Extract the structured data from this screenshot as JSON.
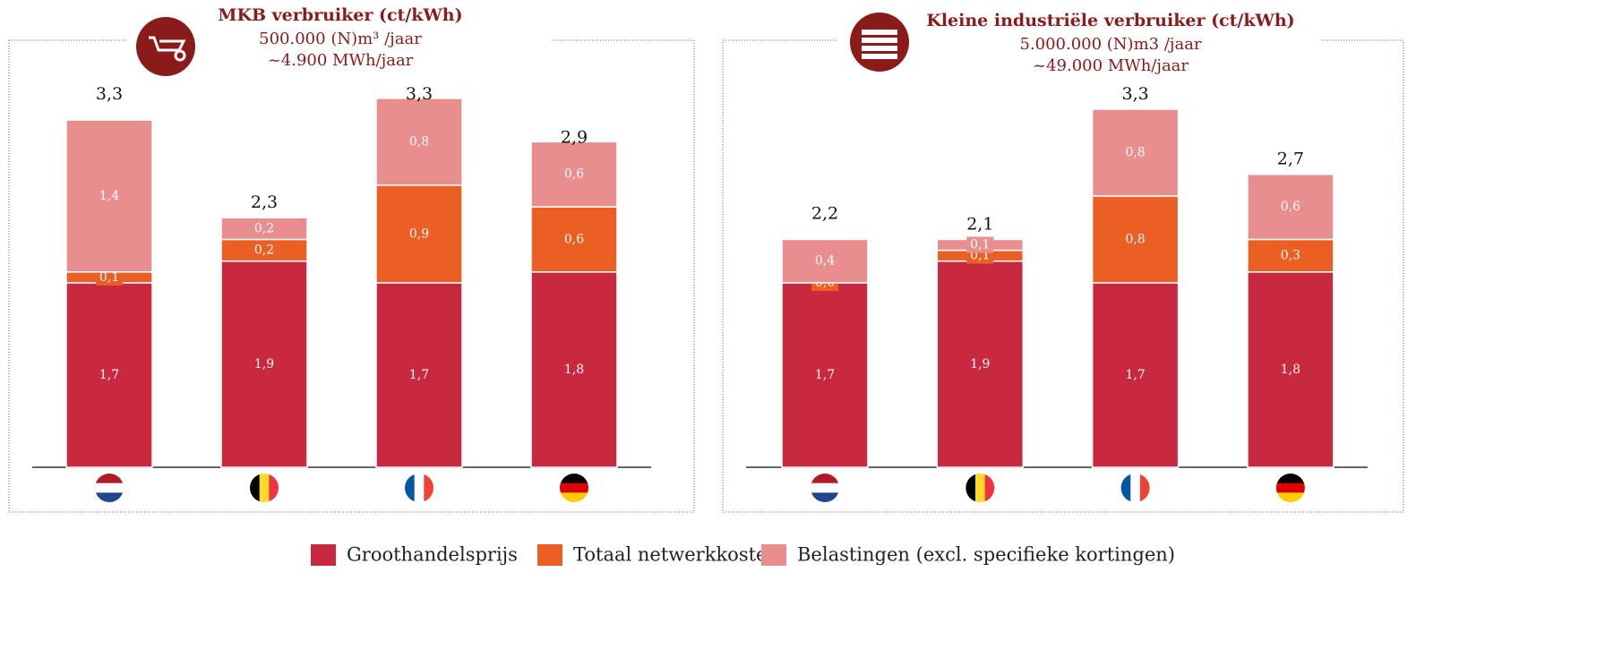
{
  "chart_data": [
    {
      "type": "stacked_bar",
      "title": "MKB verbruiker (ct/kWh)",
      "subtitle": [
        "500.000 (N)m³ /jaar",
        "~4.900 MWh/jaar"
      ],
      "categories": [
        null,
        null,
        null,
        null
      ],
      "series": [
        {
          "name": "Groothandelsprijs",
          "color": "#c8293f",
          "values": [
            1.7,
            1.9,
            1.7,
            1.8
          ],
          "value_labels": [
            "1,7",
            "1,9",
            "1,7",
            "1,8"
          ]
        },
        {
          "name": "Totaal netwerkkosten",
          "color": "#ec5f24",
          "values": [
            0.1,
            0.2,
            0.9,
            0.6
          ],
          "value_labels": [
            "0,1",
            "0,2",
            "0,9",
            "0,6"
          ]
        },
        {
          "name": "Belastingen (excl. specifieke kortingen)",
          "color": "#e88e8e",
          "values": [
            1.4,
            0.2,
            0.8,
            0.6
          ],
          "value_labels": [
            "1,4",
            "0,2",
            "0,8",
            "0,6"
          ]
        }
      ],
      "totals": [
        3.3,
        2.3,
        3.3,
        2.9
      ],
      "total_labels": [
        "3,3",
        "2,3",
        "3,3",
        "2,9"
      ]
    },
    {
      "type": "stacked_bar",
      "title": "Kleine industriële verbruiker (ct/kWh)",
      "subtitle": [
        "5.000.000 (N)m3 /jaar",
        "~49.000 MWh/jaar"
      ],
      "categories": [
        null,
        null,
        null,
        null
      ],
      "series": [
        {
          "name": "Groothandelsprijs",
          "color": "#c8293f",
          "values": [
            1.7,
            1.9,
            1.7,
            1.8
          ],
          "value_labels": [
            "1,7",
            "1,9",
            "1,7",
            "1,8"
          ]
        },
        {
          "name": "Totaal netwerkkosten",
          "color": "#ec5f24",
          "values": [
            0.0,
            0.1,
            0.8,
            0.3
          ],
          "value_labels": [
            "0,0",
            "0,1",
            "0,8",
            "0,3"
          ]
        },
        {
          "name": "Belastingen (excl. specifieke kortingen)",
          "color": "#e88e8e",
          "values": [
            0.4,
            0.1,
            0.8,
            0.6
          ],
          "value_labels": [
            "0,4",
            "0,1",
            "0,8",
            "0,6"
          ]
        }
      ],
      "totals": [
        2.2,
        2.1,
        3.3,
        2.7
      ],
      "total_labels": [
        "2,2",
        "2,1",
        "3,3",
        "2,7"
      ]
    }
  ]
}
